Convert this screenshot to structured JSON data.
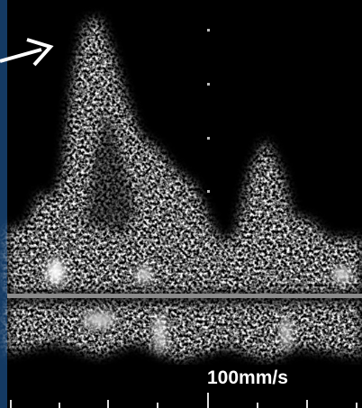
{
  "sweep_speed_label": "100mm/s"
}
